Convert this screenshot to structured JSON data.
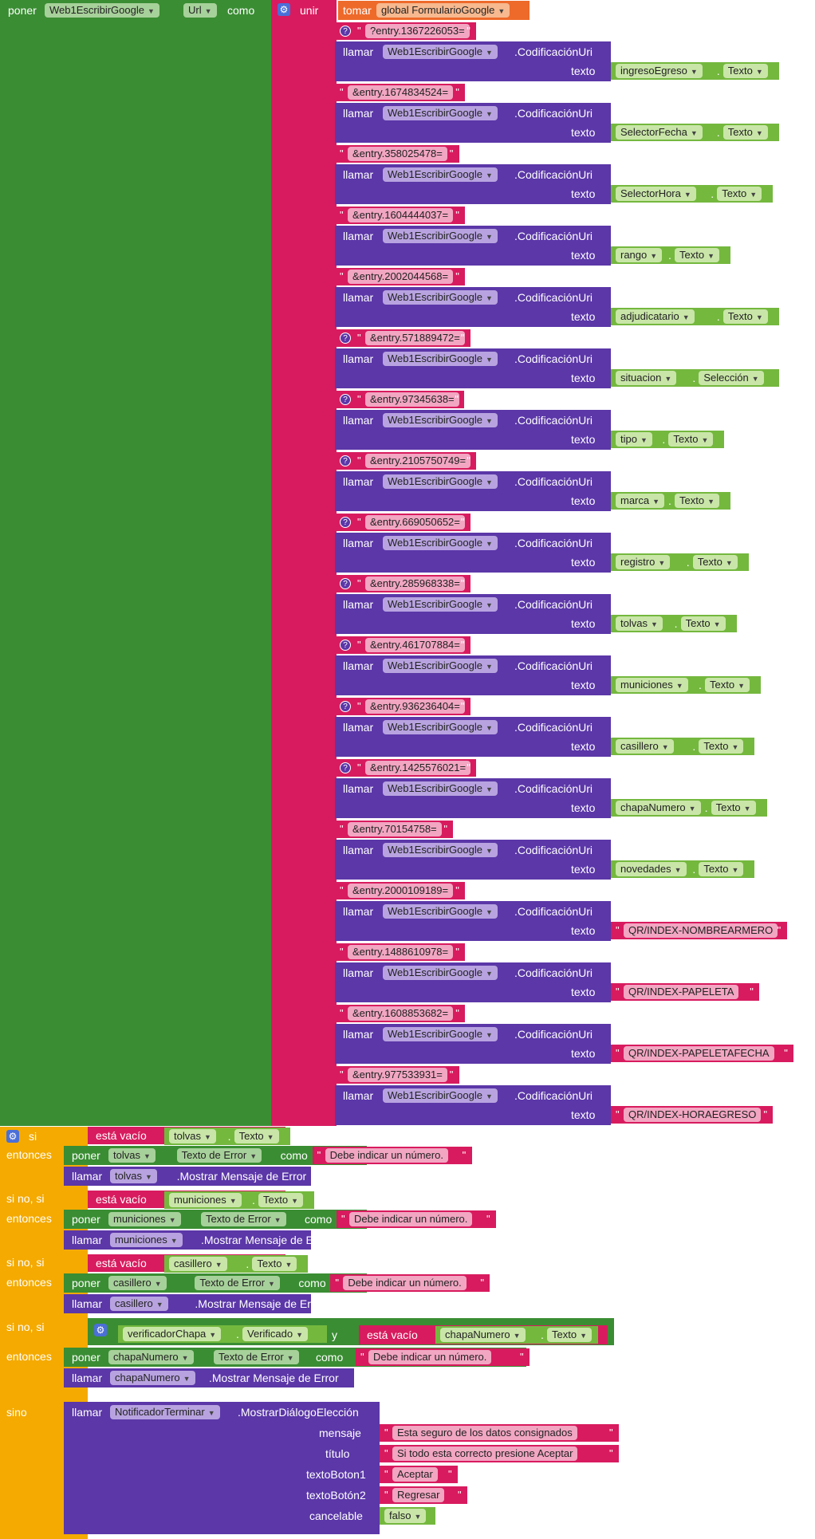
{
  "set_block": {
    "poner": "poner",
    "component": "Web1EscribirGoogle",
    "property": "Url",
    "como": "como",
    "unir": "unir",
    "tomar": "tomar",
    "global_var": "global FormularioGoogle"
  },
  "common": {
    "llamar": "llamar",
    "component": "Web1EscribirGoogle",
    "method": ".CodificaciónUri",
    "texto": "texto",
    "dot": "."
  },
  "rows": [
    {
      "entry": "?entry.1367226053=",
      "q": true,
      "comp": "ingresoEgreso",
      "prop": "Texto"
    },
    {
      "entry": "&entry.1674834524=",
      "q": false,
      "comp": "SelectorFecha",
      "prop": "Texto"
    },
    {
      "entry": "&entry.358025478=",
      "q": false,
      "comp": "SelectorHora",
      "prop": "Texto"
    },
    {
      "entry": "&entry.1604444037=",
      "q": false,
      "comp": "rango",
      "prop": "Texto"
    },
    {
      "entry": "&entry.2002044568=",
      "q": false,
      "comp": "adjudicatario",
      "prop": "Texto"
    },
    {
      "entry": "&entry.571889472=",
      "q": true,
      "comp": "situacion",
      "prop": "Selección"
    },
    {
      "entry": "&entry.97345638=",
      "q": true,
      "comp": "tipo",
      "prop": "Texto"
    },
    {
      "entry": "&entry.2105750749=",
      "q": true,
      "comp": "marca",
      "prop": "Texto"
    },
    {
      "entry": "&entry.669050652=",
      "q": true,
      "comp": "registro",
      "prop": "Texto"
    },
    {
      "entry": "&entry.285968338=",
      "q": true,
      "comp": "tolvas",
      "prop": "Texto"
    },
    {
      "entry": "&entry.461707884=",
      "q": true,
      "comp": "municiones",
      "prop": "Texto"
    },
    {
      "entry": "&entry.936236404=",
      "q": true,
      "comp": "casillero",
      "prop": "Texto"
    },
    {
      "entry": "&entry.1425576021=",
      "q": true,
      "comp": "chapaNumero",
      "prop": "Texto"
    },
    {
      "entry": "&entry.70154758=",
      "q": false,
      "comp": "novedades",
      "prop": "Texto"
    },
    {
      "entry": "&entry.2000109189=",
      "q": false,
      "str": "QR/INDEX-NOMBREARMERO"
    },
    {
      "entry": "&entry.1488610978=",
      "q": false,
      "str": "QR/INDEX-PAPELETA"
    },
    {
      "entry": "&entry.1608853682=",
      "q": false,
      "str": "QR/INDEX-PAPELETAFECHA"
    },
    {
      "entry": "&entry.977533931=",
      "q": false,
      "str": "QR/INDEX-HORAEGRESO"
    }
  ],
  "if_block": {
    "si": "si",
    "entonces": "entonces",
    "sino_si": "si no, si",
    "sino": "sino",
    "esta_vacio": "está vacío",
    "poner": "poner",
    "llamar": "llamar",
    "texto_error": "Texto de Error",
    "como": "como",
    "mostrar_error": ".Mostrar Mensaje de Error",
    "mensaje_num": "Debe indicar un número.",
    "branches": [
      {
        "comp": "tolvas",
        "prop": "Texto"
      },
      {
        "comp": "municiones",
        "prop": "Texto"
      },
      {
        "comp": "casillero",
        "prop": "Texto"
      },
      {
        "comp": "chapaNumero",
        "prop": "Texto"
      }
    ],
    "verificador": "verificadorChapa",
    "verificado": "Verificado",
    "y": "y"
  },
  "dialog": {
    "llamar": "llamar",
    "component": "NotificadorTerminar",
    "method": ".MostrarDiálogoElección",
    "labels": [
      "mensaje",
      "título",
      "textoBoton1",
      "textoBotón2",
      "cancelable"
    ],
    "mensaje": "Esta seguro de los datos consignados",
    "titulo": "Si todo esta correcto presione Aceptar",
    "boton1": "Aceptar",
    "boton2": "Regresar",
    "cancelable": "falso"
  },
  "colors": {
    "green": "#3a8d33",
    "pink": "#d81b5e",
    "purple": "#5b37a8",
    "light_green": "#74b83e",
    "orange": "#ee6a2a",
    "amber": "#f4aa00"
  }
}
